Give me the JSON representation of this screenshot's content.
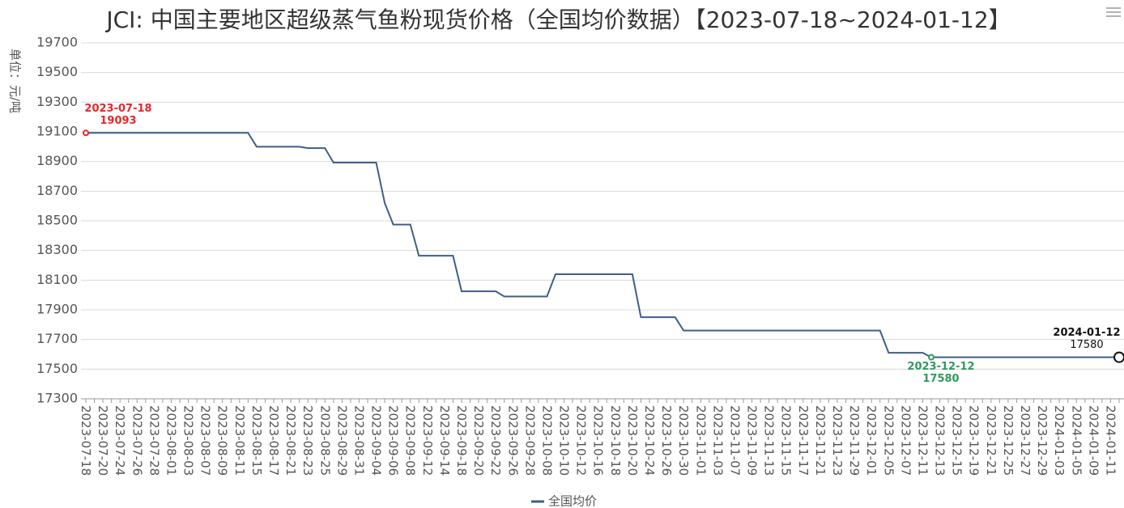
{
  "chart_data": {
    "type": "line",
    "title": "JCI: 中国主要地区超级蒸气鱼粉现货价格（全国均价数据）【2023-07-18~2024-01-12】",
    "y_label": "单位：元/吨",
    "categories": [
      "2023-07-18",
      null,
      "2023-07-20",
      null,
      "2023-07-24",
      null,
      "2023-07-26",
      null,
      "2023-07-28",
      null,
      "2023-08-01",
      null,
      "2023-08-03",
      null,
      "2023-08-07",
      null,
      "2023-08-09",
      null,
      "2023-08-11",
      null,
      "2023-08-15",
      null,
      "2023-08-17",
      null,
      "2023-08-21",
      null,
      "2023-08-23",
      null,
      "2023-08-25",
      null,
      "2023-08-29",
      null,
      "2023-08-31",
      null,
      "2023-09-04",
      null,
      "2023-09-06",
      null,
      "2023-09-08",
      null,
      "2023-09-12",
      null,
      "2023-09-14",
      null,
      "2023-09-18",
      null,
      "2023-09-20",
      null,
      "2023-09-22",
      null,
      "2023-09-26",
      null,
      "2023-09-28",
      null,
      "2023-10-08",
      null,
      "2023-10-10",
      null,
      "2023-10-12",
      null,
      "2023-10-16",
      null,
      "2023-10-18",
      null,
      "2023-10-20",
      null,
      "2023-10-24",
      null,
      "2023-10-26",
      null,
      "2023-10-30",
      null,
      "2023-11-01",
      null,
      "2023-11-03",
      null,
      "2023-11-07",
      null,
      "2023-11-09",
      null,
      "2023-11-13",
      null,
      "2023-11-15",
      null,
      "2023-11-17",
      null,
      "2023-11-21",
      null,
      "2023-11-23",
      null,
      "2023-11-29",
      null,
      "2023-12-01",
      null,
      "2023-12-05",
      null,
      "2023-12-07",
      null,
      "2023-12-11",
      null,
      "2023-12-13",
      null,
      "2023-12-15",
      null,
      "2023-12-19",
      null,
      "2023-12-21",
      null,
      "2023-12-25",
      null,
      "2023-12-27",
      null,
      "2023-12-29",
      null,
      "2024-01-03",
      null,
      "2024-01-05",
      null,
      "2024-01-09",
      null,
      "2024-01-11",
      null
    ],
    "series": [
      {
        "name": "全国均价",
        "color": "#3d5f8a",
        "values": [
          19093,
          19093,
          19093,
          19093,
          19093,
          19093,
          19093,
          19093,
          19093,
          19093,
          19093,
          19093,
          19093,
          19093,
          19093,
          19093,
          19093,
          19093,
          19093,
          19093,
          19000,
          19000,
          19000,
          19000,
          19000,
          19000,
          18990,
          18990,
          18990,
          18893,
          18893,
          18893,
          18893,
          18893,
          18893,
          18620,
          18475,
          18475,
          18475,
          18265,
          18265,
          18265,
          18265,
          18265,
          18025,
          18025,
          18025,
          18025,
          18025,
          17990,
          17990,
          17990,
          17990,
          17990,
          17990,
          18140,
          18140,
          18140,
          18140,
          18140,
          18140,
          18140,
          18140,
          18140,
          18140,
          17850,
          17850,
          17850,
          17850,
          17850,
          17760,
          17760,
          17760,
          17760,
          17760,
          17760,
          17760,
          17760,
          17760,
          17760,
          17760,
          17760,
          17760,
          17760,
          17760,
          17760,
          17760,
          17760,
          17760,
          17760,
          17760,
          17760,
          17760,
          17760,
          17610,
          17610,
          17610,
          17610,
          17610,
          17580,
          17580,
          17580,
          17580,
          17580,
          17580,
          17580,
          17580,
          17580,
          17580,
          17580,
          17580,
          17580,
          17580,
          17580,
          17580,
          17580,
          17580,
          17580,
          17580,
          17580,
          17580,
          17580
        ]
      }
    ],
    "ylim": [
      17300,
      19700
    ],
    "yticks": [
      17300,
      17500,
      17700,
      17900,
      18100,
      18300,
      18500,
      18700,
      18900,
      19100,
      19300,
      19500,
      19700
    ],
    "grid": true,
    "markers": {
      "max": {
        "date": "2023-07-18",
        "value": 19093,
        "color": "#e8262a"
      },
      "min": {
        "date": "2023-12-12",
        "value": 17580,
        "color": "#2e9a5c"
      },
      "last": {
        "date": "2024-01-12",
        "value": 17580,
        "color": "#111111"
      }
    }
  }
}
